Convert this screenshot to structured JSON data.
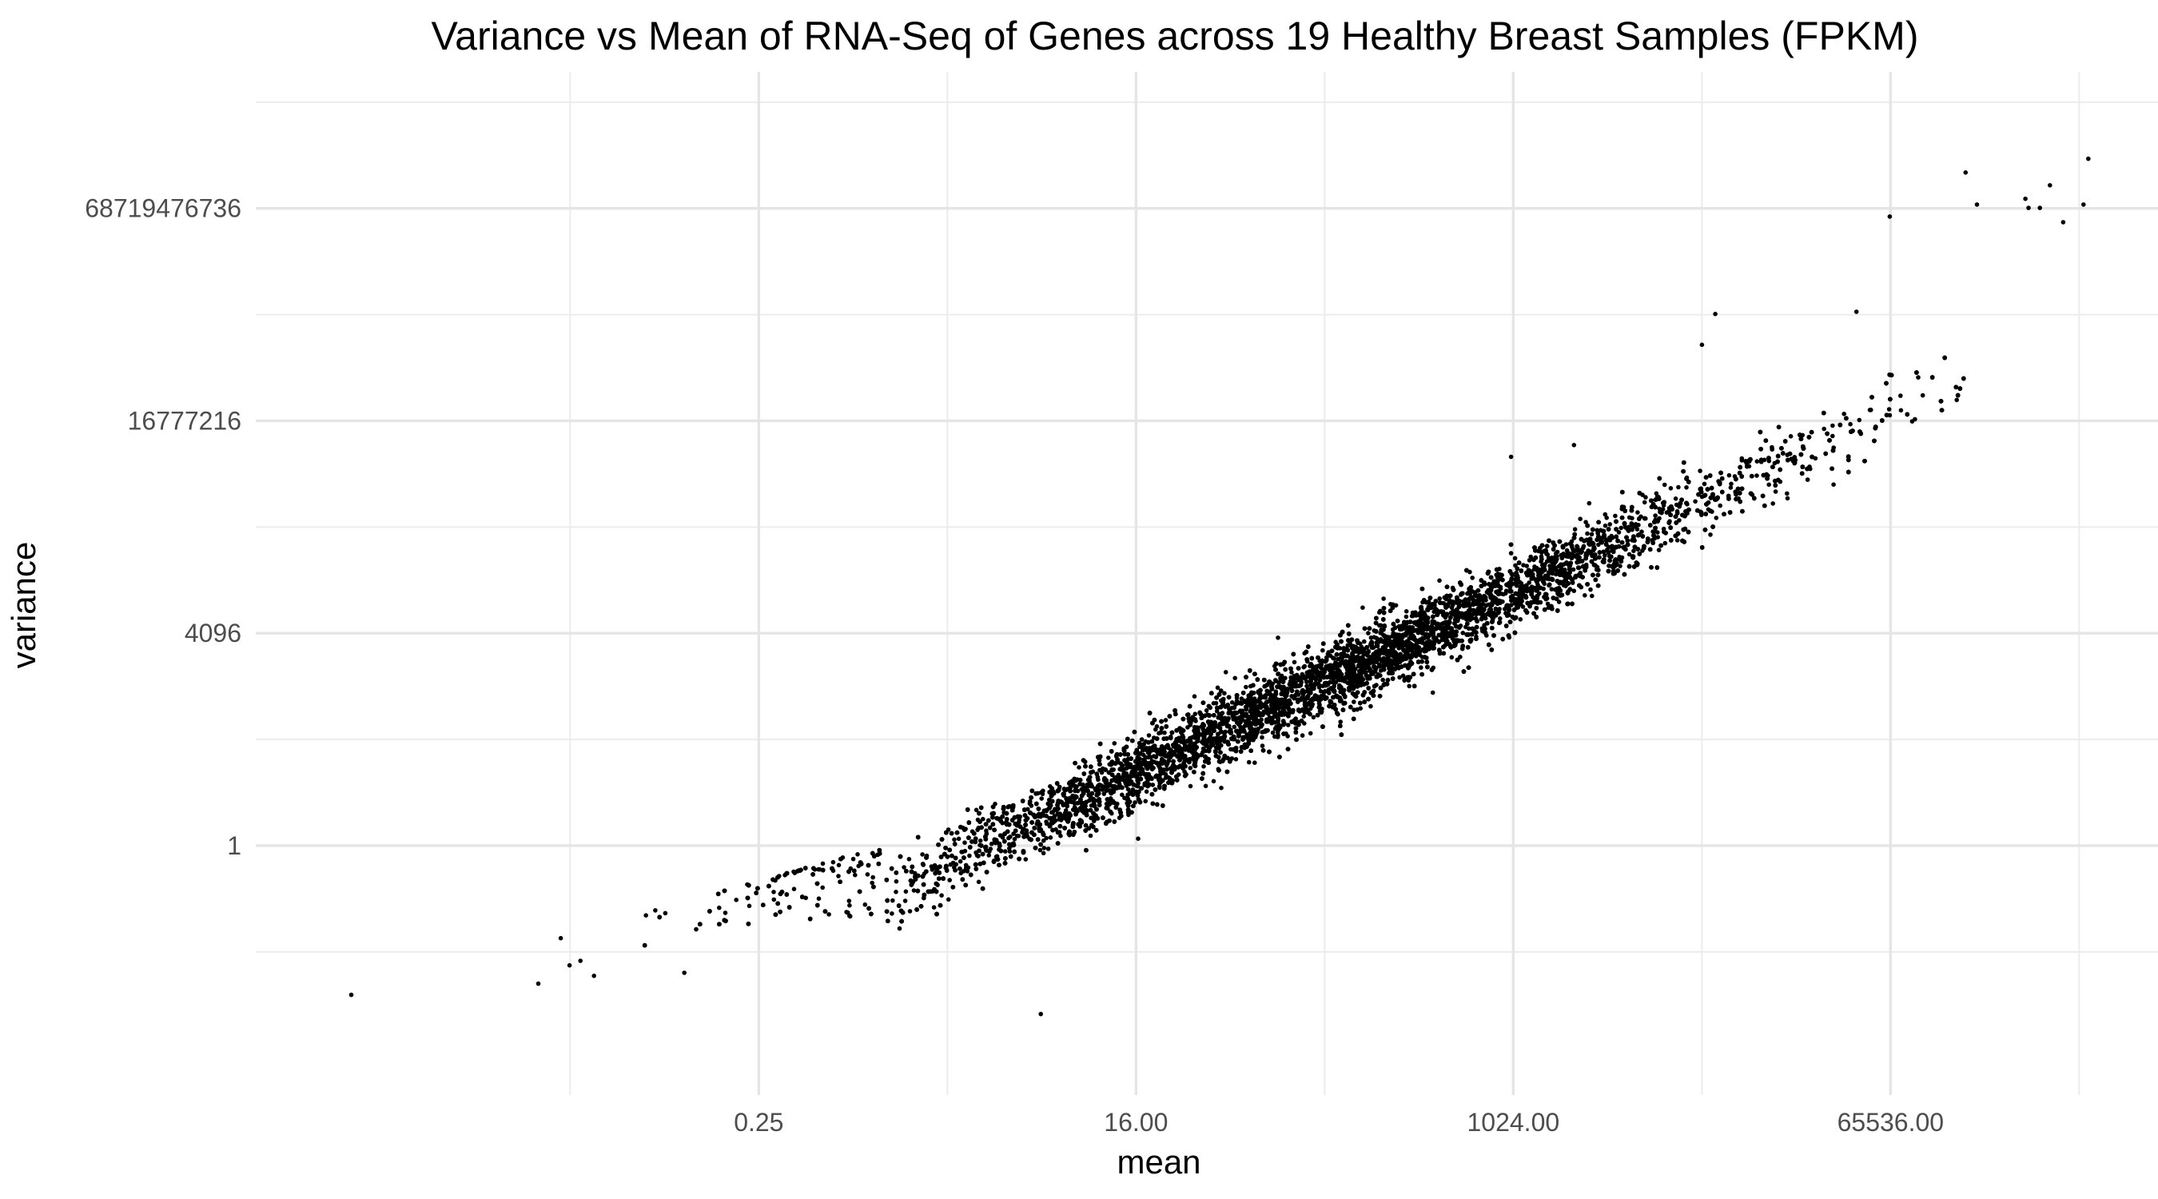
{
  "chart_data": {
    "type": "scatter",
    "title": "Variance vs Mean of RNA-Seq of Genes across 19 Healthy Breast Samples (FPKM)",
    "xlabel": "mean",
    "ylabel": "variance",
    "x_scale": "log2",
    "y_scale": "log2",
    "xlim": [
      0.0009765625,
      1048576
    ],
    "ylim": [
      6.103515625e-05,
      2199023255552
    ],
    "x_ticks": [
      0.25,
      16,
      1024,
      65536
    ],
    "x_tick_labels": [
      "0.25",
      "16.00",
      "1024.00",
      "65536.00"
    ],
    "y_ticks": [
      1,
      4096,
      16777216,
      68719476736
    ],
    "y_tick_labels": [
      "1",
      "4096",
      "16777216",
      "68719476736"
    ],
    "grid": true,
    "legend": "none",
    "point_color": "#000000",
    "approx_points": 16000,
    "trend": {
      "description": "log2(variance) roughly 1.7 x log2(mean) - 2.7 above mean 1; points below mean 1 lie on or under the line variance = mean",
      "slope_log2": 1.7,
      "intercept_log2": -2.7
    },
    "outliers": [
      {
        "x": 5.6,
        "y": 0.00137
      },
      {
        "x": 0.0028,
        "y": 0.0029
      },
      {
        "x": 0.11,
        "y": 0.0069
      },
      {
        "x": 0.022,
        "y": 0.0045
      },
      {
        "x": 0.035,
        "y": 0.011
      },
      {
        "x": 1000,
        "y": 4100000
      },
      {
        "x": 2000,
        "y": 6500000
      },
      {
        "x": 8200,
        "y": 330000000
      },
      {
        "x": 9500,
        "y": 1100000000
      },
      {
        "x": 45000,
        "y": 1200000000
      },
      {
        "x": 65000,
        "y": 50000000000
      },
      {
        "x": 150000,
        "y": 280000000000
      },
      {
        "x": 170000,
        "y": 80000000000
      },
      {
        "x": 290000,
        "y": 100000000000
      },
      {
        "x": 300000,
        "y": 70000000000
      },
      {
        "x": 340000,
        "y": 70000000000
      },
      {
        "x": 380000,
        "y": 170000000000
      },
      {
        "x": 440000,
        "y": 40000000000
      },
      {
        "x": 580000,
        "y": 480000000000
      },
      {
        "x": 550000,
        "y": 80000000000
      }
    ]
  }
}
